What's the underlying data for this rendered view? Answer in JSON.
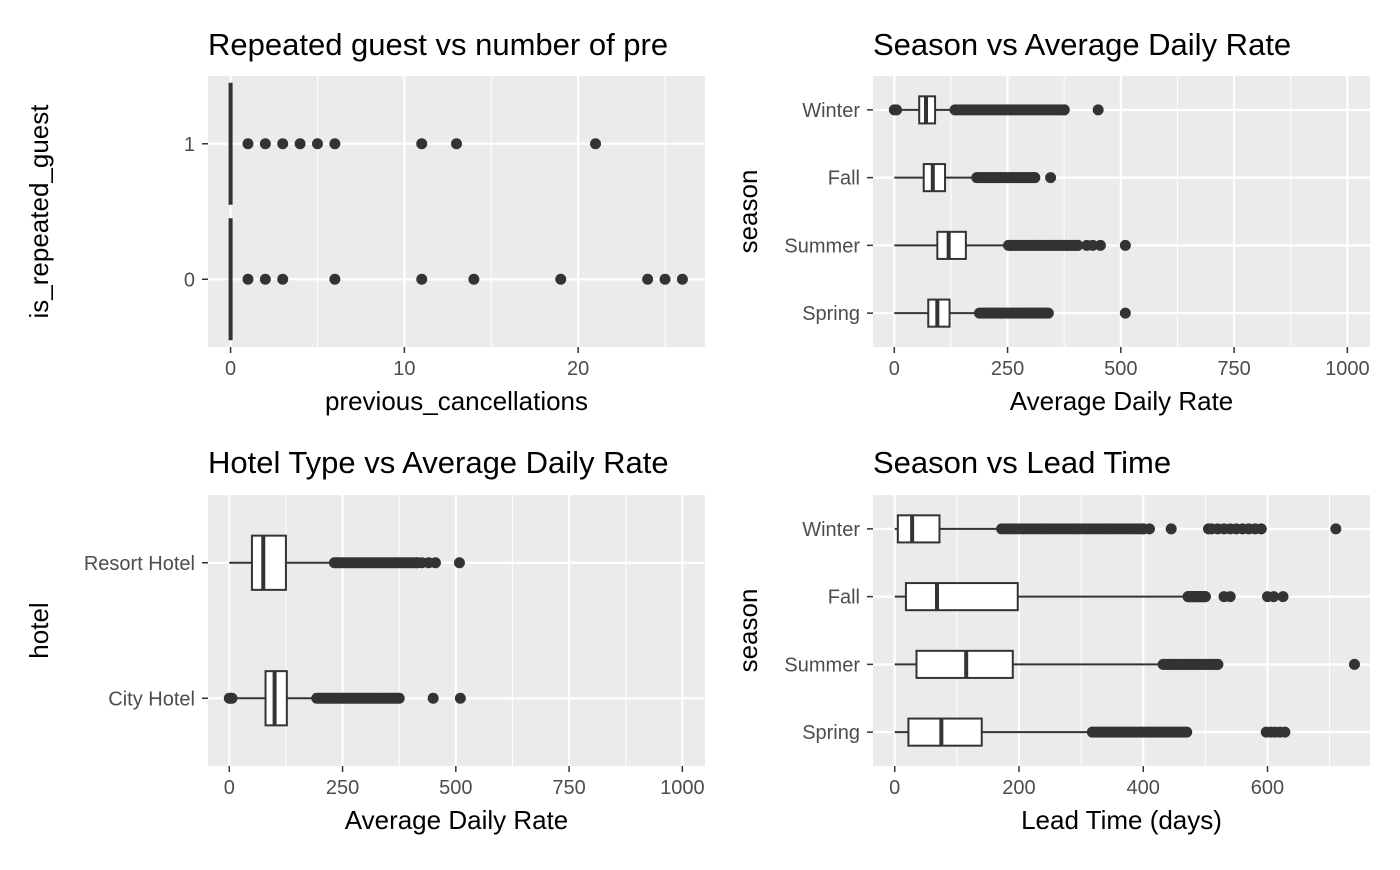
{
  "chart_data": [
    {
      "type": "boxplot",
      "title": "Repeated guest vs number of pre",
      "xlabel": "previous_cancellations",
      "ylabel": "is_repeated_guest",
      "xlim": [
        -1.3,
        27.3
      ],
      "x_ticks": [
        0,
        10,
        20
      ],
      "x_minor": [
        5,
        15,
        25
      ],
      "categories": [
        "0",
        "1"
      ],
      "boxes": [
        {
          "category": "0",
          "min": 0,
          "q1": 0,
          "median": 0,
          "q3": 0,
          "max": 0,
          "outliers": [
            1,
            2,
            3,
            6,
            11,
            14,
            19,
            24,
            25,
            26
          ]
        },
        {
          "category": "1",
          "min": 0,
          "q1": 0,
          "median": 0,
          "q3": 0,
          "max": 0,
          "outliers": [
            1,
            2,
            3,
            4,
            5,
            6,
            11,
            13,
            21
          ]
        }
      ]
    },
    {
      "type": "boxplot",
      "title": "Season vs Average Daily Rate",
      "xlabel": "Average Daily Rate",
      "ylabel": "season",
      "xlim": [
        -47,
        1050
      ],
      "x_ticks": [
        0,
        250,
        500,
        750,
        1000
      ],
      "x_minor": [
        125,
        375,
        625,
        875
      ],
      "categories": [
        "Spring",
        "Summer",
        "Fall",
        "Winter"
      ],
      "boxes": [
        {
          "category": "Spring",
          "min": 0,
          "q1": 75,
          "median": 95,
          "q3": 122,
          "max": 186,
          "outliers_from": 188,
          "outliers_to": 340,
          "outliers": [
            510
          ]
        },
        {
          "category": "Summer",
          "min": 0,
          "q1": 95,
          "median": 120,
          "q3": 158,
          "max": 250,
          "outliers_from": 252,
          "outliers_to": 405,
          "outliers": [
            425,
            438,
            455,
            510
          ]
        },
        {
          "category": "Fall",
          "min": 0,
          "q1": 65,
          "median": 85,
          "q3": 112,
          "max": 180,
          "outliers_from": 182,
          "outliers_to": 310,
          "outliers": [
            345
          ]
        },
        {
          "category": "Winter",
          "min": 0,
          "q1": 55,
          "median": 70,
          "q3": 90,
          "max": 132,
          "outliers_from": 134,
          "outliers_to": 375,
          "outliers": [
            0,
            5,
            450
          ]
        }
      ]
    },
    {
      "type": "boxplot",
      "title": "Hotel Type vs Average Daily Rate",
      "xlabel": "Average Daily Rate",
      "ylabel": "hotel",
      "xlim": [
        -47,
        1050
      ],
      "x_ticks": [
        0,
        250,
        500,
        750,
        1000
      ],
      "x_minor": [
        125,
        375,
        625,
        875
      ],
      "categories": [
        "City Hotel",
        "Resort Hotel"
      ],
      "boxes": [
        {
          "category": "City Hotel",
          "min": 0,
          "q1": 80,
          "median": 100,
          "q3": 127,
          "max": 190,
          "outliers_from": 193,
          "outliers_to": 375,
          "outliers": [
            0,
            3,
            6,
            450,
            510
          ]
        },
        {
          "category": "Resort Hotel",
          "min": 0,
          "q1": 50,
          "median": 75,
          "q3": 125,
          "max": 230,
          "outliers_from": 232,
          "outliers_to": 415,
          "outliers": [
            425,
            440,
            455,
            508
          ]
        }
      ]
    },
    {
      "type": "boxplot",
      "title": "Season vs Lead Time",
      "xlabel": "Lead Time (days)",
      "ylabel": "season",
      "xlim": [
        -35,
        765
      ],
      "x_ticks": [
        0,
        200,
        400,
        600
      ],
      "x_minor": [
        100,
        300,
        500,
        700
      ],
      "categories": [
        "Spring",
        "Summer",
        "Fall",
        "Winter"
      ],
      "boxes": [
        {
          "category": "Spring",
          "min": 0,
          "q1": 22,
          "median": 75,
          "q3": 140,
          "max": 315,
          "outliers_from": 318,
          "outliers_to": 470,
          "outliers": [
            598,
            605,
            612,
            620,
            628
          ]
        },
        {
          "category": "Summer",
          "min": 0,
          "q1": 35,
          "median": 115,
          "q3": 190,
          "max": 430,
          "outliers_from": 432,
          "outliers_to": 520,
          "outliers": [
            740
          ]
        },
        {
          "category": "Fall",
          "min": 0,
          "q1": 18,
          "median": 68,
          "q3": 198,
          "max": 470,
          "outliers_from": 472,
          "outliers_to": 500,
          "outliers": [
            530,
            540,
            600,
            610,
            625
          ]
        },
        {
          "category": "Winter",
          "min": 0,
          "q1": 5,
          "median": 28,
          "q3": 72,
          "max": 170,
          "outliers_from": 172,
          "outliers_to": 400,
          "outliers": [
            410,
            445,
            505,
            510,
            520,
            530,
            540,
            550,
            560,
            570,
            580,
            590,
            710
          ]
        }
      ]
    }
  ]
}
